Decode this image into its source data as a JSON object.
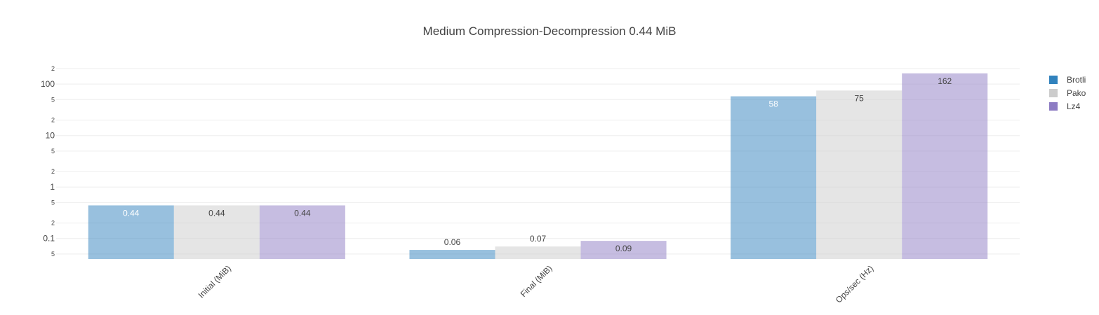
{
  "chart_data": {
    "type": "bar",
    "title": "Medium Compression-Decompression 0.44 MiB",
    "categories": [
      "Initial (MiB)",
      "Final (MiB)",
      "Ops/sec (Hz)"
    ],
    "series": [
      {
        "name": "Brotli",
        "values": [
          0.44,
          0.06,
          58
        ],
        "labels": [
          "0.44",
          "0.06",
          "58"
        ],
        "color": "#3182bd",
        "label_color": "#ffffff"
      },
      {
        "name": "Pako",
        "values": [
          0.44,
          0.07,
          75
        ],
        "labels": [
          "0.44",
          "0.07",
          "75"
        ],
        "color": "#cccccc",
        "label_color": "#444444"
      },
      {
        "name": "Lz4",
        "values": [
          0.44,
          0.09,
          162
        ],
        "labels": [
          "0.44",
          "0.09",
          "162"
        ],
        "color": "#8d7cc3",
        "label_color": "#444444"
      }
    ],
    "yaxis": {
      "scale": "log",
      "ylim": [
        0.04,
        220
      ],
      "major_ticks": [
        0.1,
        1,
        10,
        100
      ],
      "major_labels": [
        "0.1",
        "1",
        "10",
        "100"
      ],
      "minor_ticks": [
        0.05,
        0.2,
        0.5,
        2,
        5,
        20,
        50,
        200
      ],
      "minor_labels": [
        "5",
        "2",
        "5",
        "2",
        "5",
        "2",
        "5",
        "2"
      ]
    },
    "legend_position": "top-right",
    "grid": true
  }
}
